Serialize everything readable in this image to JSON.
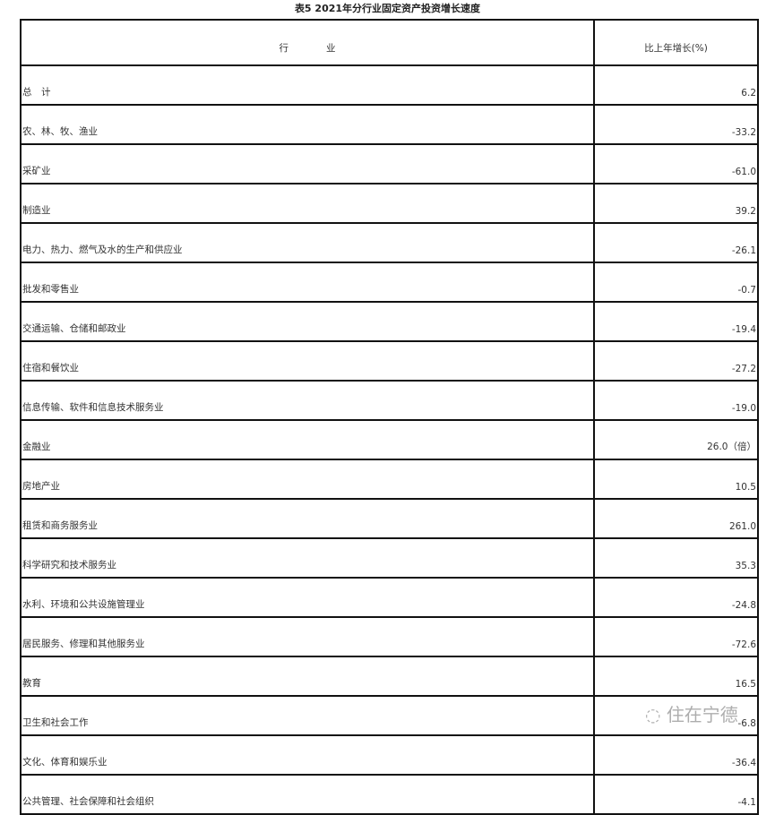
{
  "title": "表5  2021年分行业固定资产投资增长速度",
  "headers": {
    "industry": "行　　　　业",
    "growth": "比上年增长(%)"
  },
  "rows": [
    {
      "name": "总　计",
      "value": "6.2"
    },
    {
      "name": "农、林、牧、渔业",
      "value": "-33.2"
    },
    {
      "name": "采矿业",
      "value": "-61.0"
    },
    {
      "name": "制造业",
      "value": "39.2"
    },
    {
      "name": "电力、热力、燃气及水的生产和供应业",
      "value": "-26.1"
    },
    {
      "name": "批发和零售业",
      "value": "-0.7"
    },
    {
      "name": "交通运输、仓储和邮政业",
      "value": "-19.4"
    },
    {
      "name": "住宿和餐饮业",
      "value": "-27.2"
    },
    {
      "name": "信息传输、软件和信息技术服务业",
      "value": "-19.0"
    },
    {
      "name": "金融业",
      "value": "26.0（倍）"
    },
    {
      "name": "房地产业",
      "value": "10.5"
    },
    {
      "name": "租赁和商务服务业",
      "value": "261.0"
    },
    {
      "name": "科学研究和技术服务业",
      "value": "35.3"
    },
    {
      "name": "水利、环境和公共设施管理业",
      "value": "-24.8"
    },
    {
      "name": "居民服务、修理和其他服务业",
      "value": "-72.6"
    },
    {
      "name": "教育",
      "value": "16.5"
    },
    {
      "name": "卫生和社会工作",
      "value": "-6.8"
    },
    {
      "name": "文化、体育和娱乐业",
      "value": "-36.4"
    },
    {
      "name": "公共管理、社会保障和社会组织",
      "value": "-4.1"
    }
  ],
  "watermark": "住在宁德"
}
